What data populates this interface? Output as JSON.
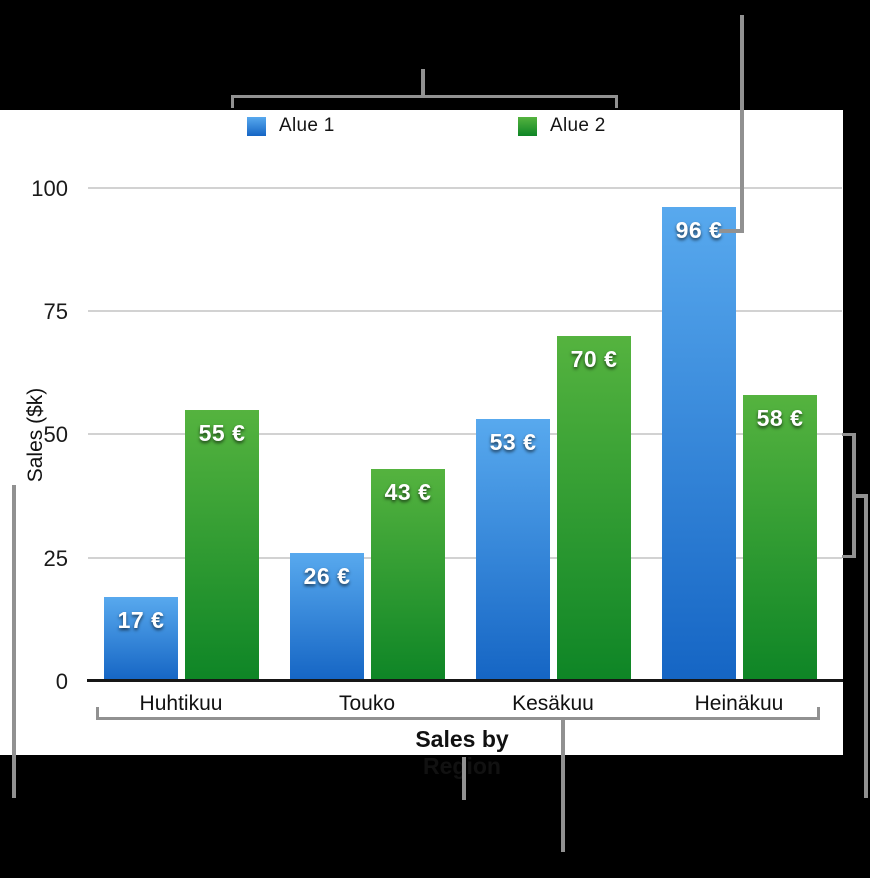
{
  "chart_data": {
    "type": "bar",
    "categories": [
      "Huhtikuu",
      "Touko",
      "Kesäkuu",
      "Heinäkuu"
    ],
    "series": [
      {
        "name": "Alue 1",
        "color": "#2f87d9",
        "color_top": "#58a9ee",
        "color_bottom": "#1565c4",
        "values": [
          17,
          26,
          53,
          96
        ],
        "value_labels": [
          "17 €",
          "26 €",
          "53 €",
          "96 €"
        ]
      },
      {
        "name": "Alue 2",
        "color": "#28982f",
        "color_top": "#55b33f",
        "color_bottom": "#0e8526",
        "values": [
          55,
          43,
          70,
          58
        ],
        "value_labels": [
          "55 €",
          "43 €",
          "70 €",
          "58 €"
        ]
      }
    ],
    "xlabel": "Sales by Region",
    "ylabel": "Sales ($k)",
    "yticks": [
      0,
      25,
      50,
      75,
      100
    ],
    "ylim": [
      0,
      100
    ],
    "grid": true,
    "legend_position": "top"
  },
  "colors": {
    "page_background": "#000000",
    "panel_background": "#ffffff",
    "callout_line": "#919191",
    "gridline": "#d2d2d2",
    "axis_line": "#161616",
    "value_label_text": "#ffffff"
  }
}
